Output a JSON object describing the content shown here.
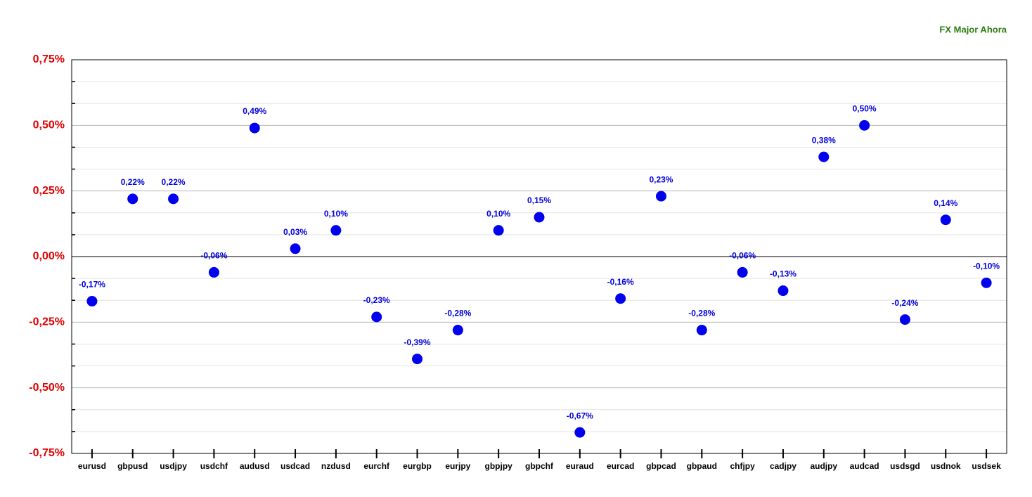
{
  "chart_data": {
    "type": "dot",
    "title": "FX Major Ahora",
    "categories": [
      "eurusd",
      "gbpusd",
      "usdjpy",
      "usdchf",
      "audusd",
      "usdcad",
      "nzdusd",
      "eurchf",
      "eurgbp",
      "eurjpy",
      "gbpjpy",
      "gbpchf",
      "euraud",
      "eurcad",
      "gbpcad",
      "gbpaud",
      "chfjpy",
      "cadjpy",
      "audjpy",
      "audcad",
      "usdsgd",
      "usdnok",
      "usdsek"
    ],
    "values": [
      -0.17,
      0.22,
      0.22,
      -0.06,
      0.49,
      0.03,
      0.1,
      -0.23,
      -0.39,
      -0.28,
      0.1,
      0.15,
      -0.67,
      -0.16,
      0.23,
      -0.28,
      -0.06,
      -0.13,
      0.38,
      0.5,
      -0.24,
      0.14,
      -0.1
    ],
    "value_labels": [
      "-0,17%",
      "0,22%",
      "0,22%",
      "-0,06%",
      "0,49%",
      "0,03%",
      "0,10%",
      "-0,23%",
      "-0,39%",
      "-0,28%",
      "0,10%",
      "0,15%",
      "-0,67%",
      "-0,16%",
      "0,23%",
      "-0,28%",
      "-0,06%",
      "-0,13%",
      "0,38%",
      "0,50%",
      "-0,24%",
      "0,14%",
      "-0,10%"
    ],
    "color": "#0000ee",
    "ylim": [
      -0.75,
      0.75
    ],
    "yticks": [
      {
        "value": 0.75,
        "label": "0,75%"
      },
      {
        "value": 0.5,
        "label": "0,50%"
      },
      {
        "value": 0.25,
        "label": "0,25%"
      },
      {
        "value": 0,
        "label": "0,00%"
      },
      {
        "value": -0.25,
        "label": "-0,25%"
      },
      {
        "value": -0.5,
        "label": "-0,50%"
      },
      {
        "value": -0.75,
        "label": "-0,75%"
      }
    ],
    "grid": true
  }
}
